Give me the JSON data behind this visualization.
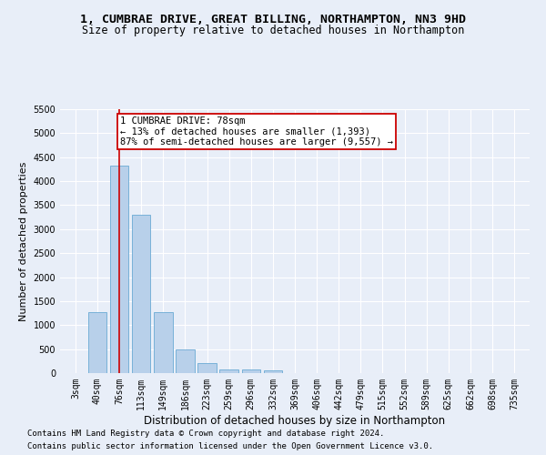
{
  "title": "1, CUMBRAE DRIVE, GREAT BILLING, NORTHAMPTON, NN3 9HD",
  "subtitle": "Size of property relative to detached houses in Northampton",
  "xlabel": "Distribution of detached houses by size in Northampton",
  "ylabel": "Number of detached properties",
  "footnote1": "Contains HM Land Registry data © Crown copyright and database right 2024.",
  "footnote2": "Contains public sector information licensed under the Open Government Licence v3.0.",
  "bar_labels": [
    "3sqm",
    "40sqm",
    "76sqm",
    "113sqm",
    "149sqm",
    "186sqm",
    "223sqm",
    "259sqm",
    "296sqm",
    "332sqm",
    "369sqm",
    "406sqm",
    "442sqm",
    "479sqm",
    "515sqm",
    "552sqm",
    "589sqm",
    "625sqm",
    "662sqm",
    "698sqm",
    "735sqm"
  ],
  "bar_values": [
    0,
    1270,
    4330,
    3300,
    1280,
    490,
    210,
    80,
    70,
    50,
    0,
    0,
    0,
    0,
    0,
    0,
    0,
    0,
    0,
    0,
    0
  ],
  "bar_color": "#b8d0ea",
  "bar_edge_color": "#6aaad4",
  "property_line_x": 2,
  "annotation_text": "1 CUMBRAE DRIVE: 78sqm\n← 13% of detached houses are smaller (1,393)\n87% of semi-detached houses are larger (9,557) →",
  "annotation_box_color": "#ffffff",
  "annotation_box_edge": "#cc0000",
  "line_color": "#cc0000",
  "ylim": [
    0,
    5500
  ],
  "yticks": [
    0,
    500,
    1000,
    1500,
    2000,
    2500,
    3000,
    3500,
    4000,
    4500,
    5000,
    5500
  ],
  "bg_color": "#e8eef8",
  "plot_bg_color": "#e8eef8",
  "grid_color": "#ffffff",
  "title_fontsize": 9.5,
  "subtitle_fontsize": 8.5,
  "xlabel_fontsize": 8.5,
  "ylabel_fontsize": 8,
  "tick_fontsize": 7,
  "annotation_fontsize": 7.5,
  "footnote_fontsize": 6.5
}
